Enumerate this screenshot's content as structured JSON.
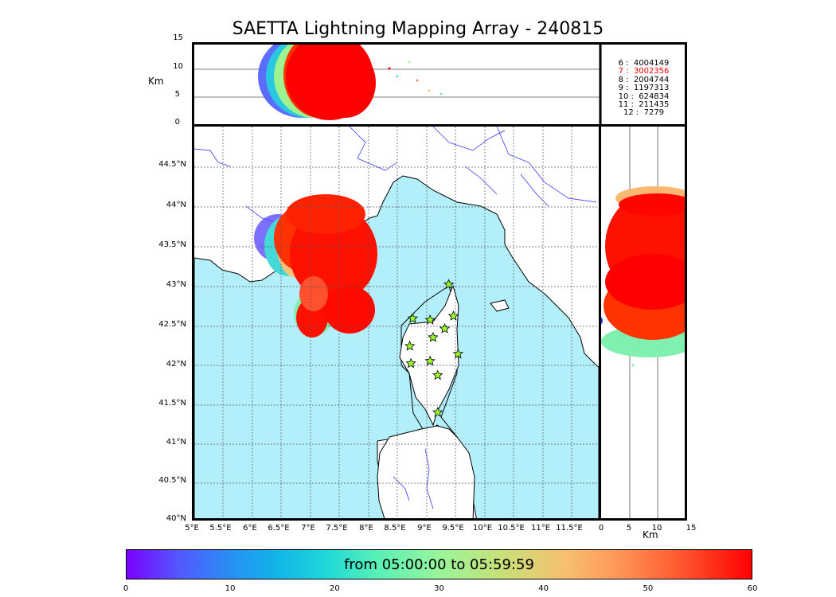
{
  "title": "SAETTA Lightning Mapping Array - 240815",
  "top_panel": {
    "ylabel": "Km",
    "yticks": [
      "15",
      "10",
      "5",
      "0"
    ]
  },
  "side_panel": {
    "xlabel": "Km",
    "xticks": [
      "0",
      "5",
      "10",
      "15"
    ]
  },
  "map": {
    "lat_ticks": [
      "44.5°N",
      "44°N",
      "43.5°N",
      "43°N",
      "42.5°N",
      "42°N",
      "41.5°N",
      "41°N",
      "40.5°N",
      "40°N"
    ],
    "lon_ticks": [
      "5°E",
      "5.5°E",
      "6°E",
      "6.5°E",
      "7°E",
      "7.5°E",
      "8°E",
      "8.5°E",
      "9°E",
      "9.5°E",
      "10°E",
      "10.5°E",
      "11°E",
      "11.5°E"
    ],
    "sea_color": "#b3eefb",
    "station_marker_color": "#9aff2a",
    "stations": [
      {
        "lon": 9.37,
        "lat": 43.0
      },
      {
        "lon": 8.75,
        "lat": 42.57
      },
      {
        "lon": 9.05,
        "lat": 42.55
      },
      {
        "lon": 9.45,
        "lat": 42.6
      },
      {
        "lon": 9.1,
        "lat": 42.33
      },
      {
        "lon": 9.3,
        "lat": 42.44
      },
      {
        "lon": 8.7,
        "lat": 42.22
      },
      {
        "lon": 8.72,
        "lat": 42.0
      },
      {
        "lon": 9.05,
        "lat": 42.03
      },
      {
        "lon": 9.53,
        "lat": 42.12
      },
      {
        "lon": 9.18,
        "lat": 41.85
      },
      {
        "lon": 9.18,
        "lat": 41.38
      }
    ]
  },
  "legend": [
    {
      "hour": "6",
      "count": "4004149",
      "color": "#000000"
    },
    {
      "hour": "7",
      "count": "3002356",
      "color": "#ff0000"
    },
    {
      "hour": "8",
      "count": "2004744",
      "color": "#000000"
    },
    {
      "hour": "9",
      "count": "1197313",
      "color": "#000000"
    },
    {
      "hour": "10",
      "count": "624834",
      "color": "#000000"
    },
    {
      "hour": "11",
      "count": "211435",
      "color": "#000000"
    },
    {
      "hour": "12",
      "count": "7279",
      "color": "#000000"
    }
  ],
  "colorbar": {
    "label": "from 05:00:00 to 05:59:59",
    "ticks": [
      "0",
      "10",
      "20",
      "30",
      "40",
      "50",
      "60"
    ],
    "range": [
      0,
      60
    ]
  }
}
